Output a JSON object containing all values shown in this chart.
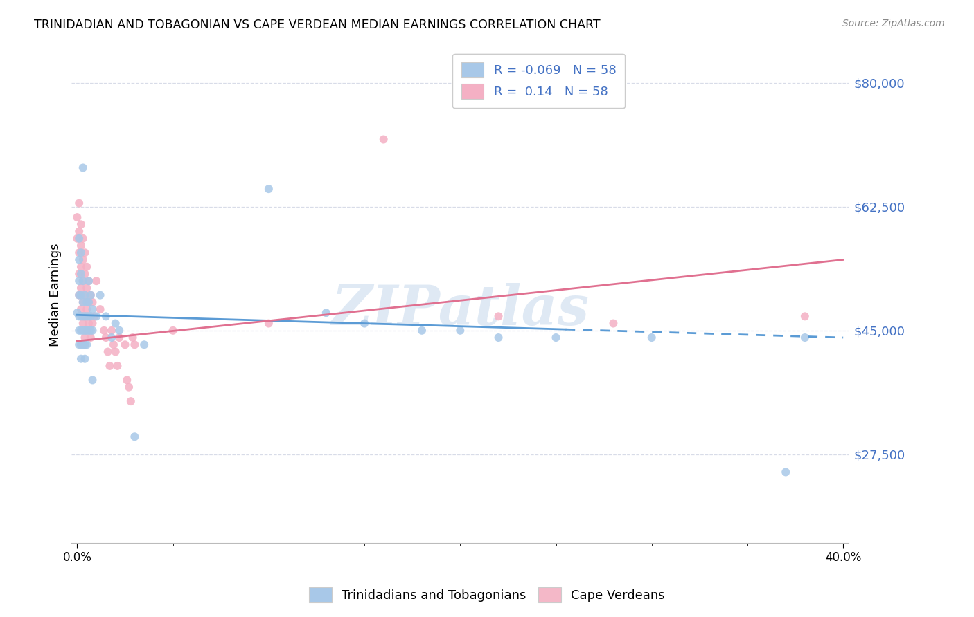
{
  "title": "TRINIDADIAN AND TOBAGONIAN VS CAPE VERDEAN MEDIAN EARNINGS CORRELATION CHART",
  "source": "Source: ZipAtlas.com",
  "ylabel": "Median Earnings",
  "ytick_labels": [
    "$27,500",
    "$45,000",
    "$62,500",
    "$80,000"
  ],
  "ytick_vals": [
    27500,
    45000,
    62500,
    80000
  ],
  "ylim": [
    15000,
    85000
  ],
  "xlim": [
    -0.003,
    0.403
  ],
  "xtick_labels": [
    "0.0%",
    "40.0%"
  ],
  "xtick_vals": [
    0.0,
    0.4
  ],
  "legend_bottom": [
    "Trinidadians and Tobagonians",
    "Cape Verdeans"
  ],
  "legend_bottom_colors": [
    "#a8c8e8",
    "#f4b8c8"
  ],
  "watermark": "ZIPatlas",
  "blue_color": "#a8c8e8",
  "pink_color": "#f4b0c4",
  "blue_line_color": "#5b9bd5",
  "pink_line_color": "#e07090",
  "blue_R": -0.069,
  "pink_R": 0.14,
  "N": 58,
  "grid_color": "#d8dce8",
  "label_color_blue": "#4472c4",
  "blue_scatter": [
    [
      0.0,
      47500
    ],
    [
      0.001,
      58000
    ],
    [
      0.001,
      55000
    ],
    [
      0.001,
      52000
    ],
    [
      0.001,
      50000
    ],
    [
      0.001,
      47000
    ],
    [
      0.001,
      45000
    ],
    [
      0.001,
      43000
    ],
    [
      0.002,
      56000
    ],
    [
      0.002,
      53000
    ],
    [
      0.002,
      50000
    ],
    [
      0.002,
      47000
    ],
    [
      0.002,
      45000
    ],
    [
      0.002,
      43000
    ],
    [
      0.002,
      41000
    ],
    [
      0.003,
      68000
    ],
    [
      0.003,
      52000
    ],
    [
      0.003,
      49000
    ],
    [
      0.003,
      47000
    ],
    [
      0.003,
      45000
    ],
    [
      0.003,
      43000
    ],
    [
      0.004,
      50000
    ],
    [
      0.004,
      47000
    ],
    [
      0.004,
      45000
    ],
    [
      0.004,
      43000
    ],
    [
      0.004,
      41000
    ],
    [
      0.005,
      49000
    ],
    [
      0.005,
      47000
    ],
    [
      0.005,
      45000
    ],
    [
      0.005,
      43000
    ],
    [
      0.006,
      52000
    ],
    [
      0.006,
      49000
    ],
    [
      0.006,
      47000
    ],
    [
      0.006,
      45000
    ],
    [
      0.007,
      50000
    ],
    [
      0.007,
      47000
    ],
    [
      0.007,
      45000
    ],
    [
      0.008,
      48000
    ],
    [
      0.008,
      45000
    ],
    [
      0.008,
      38000
    ],
    [
      0.01,
      47000
    ],
    [
      0.012,
      50000
    ],
    [
      0.015,
      47000
    ],
    [
      0.018,
      44000
    ],
    [
      0.02,
      46000
    ],
    [
      0.022,
      45000
    ],
    [
      0.03,
      30000
    ],
    [
      0.035,
      43000
    ],
    [
      0.1,
      65000
    ],
    [
      0.13,
      47500
    ],
    [
      0.15,
      46000
    ],
    [
      0.18,
      45000
    ],
    [
      0.2,
      45000
    ],
    [
      0.22,
      44000
    ],
    [
      0.25,
      44000
    ],
    [
      0.3,
      44000
    ],
    [
      0.38,
      44000
    ],
    [
      0.37,
      25000
    ]
  ],
  "pink_scatter": [
    [
      0.0,
      61000
    ],
    [
      0.0,
      58000
    ],
    [
      0.001,
      63000
    ],
    [
      0.001,
      59000
    ],
    [
      0.001,
      56000
    ],
    [
      0.001,
      53000
    ],
    [
      0.001,
      50000
    ],
    [
      0.002,
      60000
    ],
    [
      0.002,
      57000
    ],
    [
      0.002,
      54000
    ],
    [
      0.002,
      51000
    ],
    [
      0.002,
      48000
    ],
    [
      0.003,
      58000
    ],
    [
      0.003,
      55000
    ],
    [
      0.003,
      52000
    ],
    [
      0.003,
      49000
    ],
    [
      0.003,
      46000
    ],
    [
      0.004,
      56000
    ],
    [
      0.004,
      53000
    ],
    [
      0.004,
      50000
    ],
    [
      0.004,
      47000
    ],
    [
      0.004,
      44000
    ],
    [
      0.005,
      54000
    ],
    [
      0.005,
      51000
    ],
    [
      0.005,
      48000
    ],
    [
      0.005,
      45000
    ],
    [
      0.006,
      52000
    ],
    [
      0.006,
      49000
    ],
    [
      0.006,
      46000
    ],
    [
      0.007,
      50000
    ],
    [
      0.007,
      47000
    ],
    [
      0.007,
      44000
    ],
    [
      0.008,
      49000
    ],
    [
      0.008,
      46000
    ],
    [
      0.009,
      47000
    ],
    [
      0.01,
      52000
    ],
    [
      0.012,
      48000
    ],
    [
      0.014,
      45000
    ],
    [
      0.015,
      44000
    ],
    [
      0.016,
      42000
    ],
    [
      0.017,
      40000
    ],
    [
      0.018,
      45000
    ],
    [
      0.019,
      43000
    ],
    [
      0.02,
      42000
    ],
    [
      0.021,
      40000
    ],
    [
      0.022,
      44000
    ],
    [
      0.025,
      43000
    ],
    [
      0.026,
      38000
    ],
    [
      0.027,
      37000
    ],
    [
      0.028,
      35000
    ],
    [
      0.029,
      44000
    ],
    [
      0.03,
      43000
    ],
    [
      0.05,
      45000
    ],
    [
      0.1,
      46000
    ],
    [
      0.16,
      72000
    ],
    [
      0.22,
      47000
    ],
    [
      0.28,
      46000
    ],
    [
      0.38,
      47000
    ]
  ],
  "blue_line_solid_end": 0.25,
  "blue_line_dashed_start": 0.25
}
